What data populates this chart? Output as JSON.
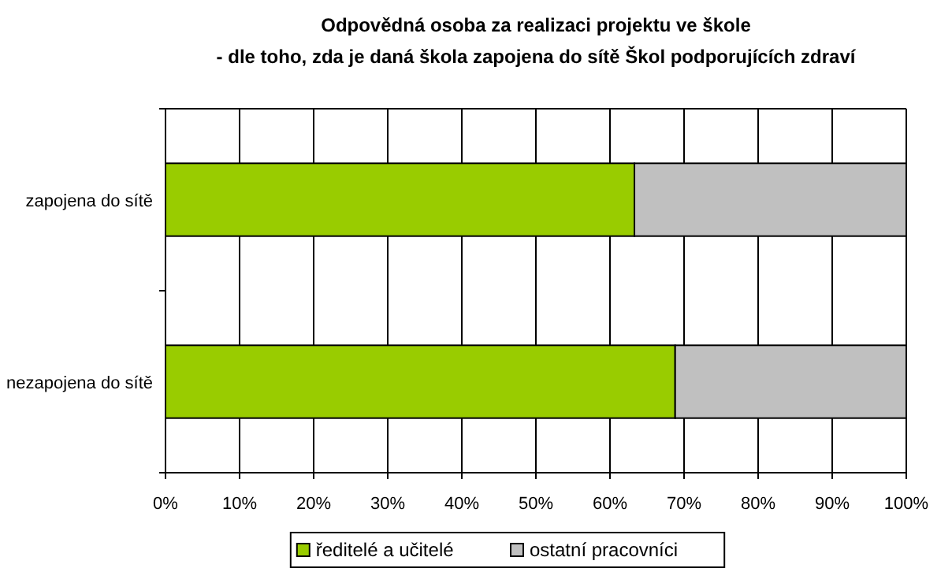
{
  "chart_data": {
    "type": "bar",
    "orientation": "horizontal",
    "stacked": true,
    "title": "Odpovědná osoba za realizaci projektu ve škole",
    "subtitle": "- dle toho, zda je daná škola zapojena do sítě Škol podporujících zdraví",
    "categories": [
      "zapojena do sítě",
      "nezapojena do sítě"
    ],
    "series": [
      {
        "name": "ředitelé a učitelé",
        "color": "#99cc00",
        "values": [
          63.3,
          68.8
        ]
      },
      {
        "name": "ostatní pracovníci",
        "color": "#c0c0c0",
        "values": [
          36.7,
          31.2
        ]
      }
    ],
    "xlim": [
      0,
      100
    ],
    "xticks": [
      {
        "value": 0,
        "label": "0%"
      },
      {
        "value": 10,
        "label": "10%"
      },
      {
        "value": 20,
        "label": "20%"
      },
      {
        "value": 30,
        "label": "30%"
      },
      {
        "value": 40,
        "label": "40%"
      },
      {
        "value": 50,
        "label": "50%"
      },
      {
        "value": 60,
        "label": "60%"
      },
      {
        "value": 70,
        "label": "70%"
      },
      {
        "value": 80,
        "label": "80%"
      },
      {
        "value": 90,
        "label": "90%"
      },
      {
        "value": 100,
        "label": "100%"
      }
    ],
    "grid": "x",
    "legend": "bottom"
  }
}
